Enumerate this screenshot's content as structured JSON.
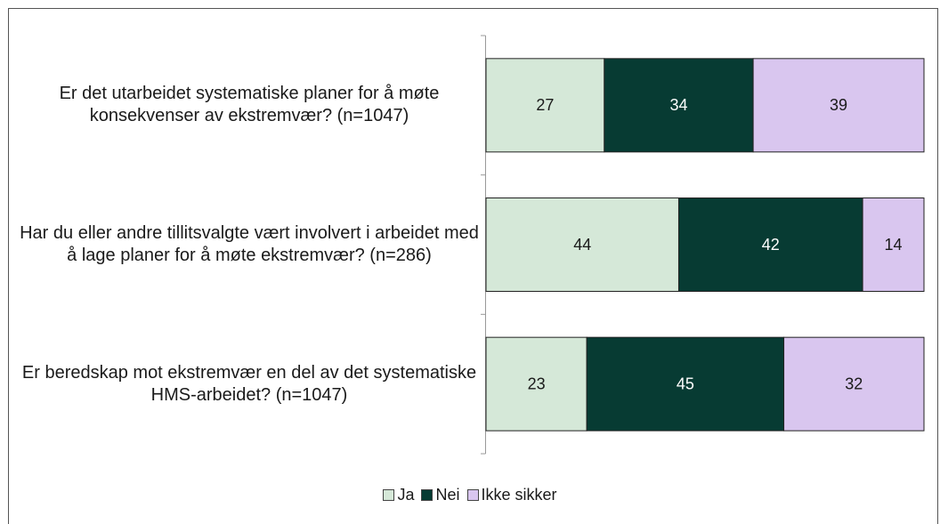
{
  "chart_data": {
    "type": "stacked-bar-horizontal",
    "categories": [
      "Er det utarbeidet systematiske planer for å møte konsekvenser av ekstremvær? (n=1047)",
      "Har du eller andre tillitsvalgte vært involvert i arbeidet med å lage planer for å møte ekstremvær? (n=286)",
      "Er beredskap mot ekstremvær en del av det systematiske HMS-arbeidet? (n=1047)"
    ],
    "series": [
      {
        "name": "Ja",
        "color": "#d5e8d8",
        "label_color": "#1a1a1a",
        "values": [
          27,
          44,
          23
        ]
      },
      {
        "name": "Nei",
        "color": "#073b33",
        "label_color": "#ffffff",
        "values": [
          34,
          42,
          45
        ]
      },
      {
        "name": "Ikke sikker",
        "color": "#d9c6ef",
        "label_color": "#1a1a1a",
        "values": [
          39,
          14,
          32
        ]
      }
    ],
    "legend": "bottom"
  }
}
